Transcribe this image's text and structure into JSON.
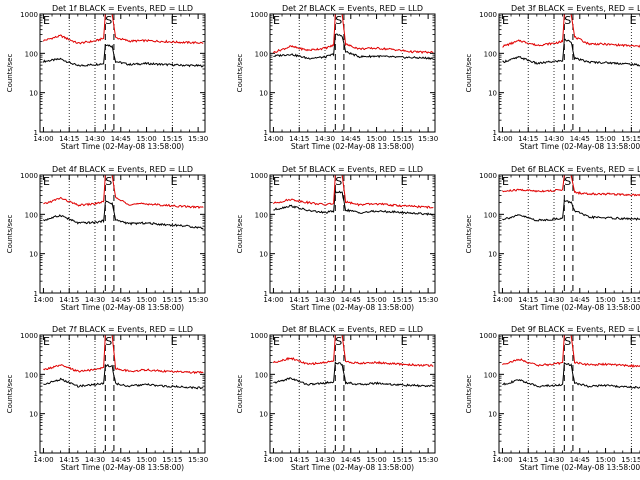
{
  "window": {
    "title": ""
  },
  "style": {
    "events_color": "#000000",
    "lld_color": "#e00000",
    "axis_color": "#000000",
    "background": "#ffffff"
  },
  "markers": {
    "s_label": "S",
    "e_label": "E"
  },
  "chart_data": [
    {
      "type": "line",
      "title": "Det 1f BLACK = Events, RED = LLD",
      "xlabel": "Start Time (02-May-08 13:58:00)",
      "ylabel": "Counts/sec",
      "yscale": "log",
      "ylim": [
        1,
        1000
      ],
      "ytick_labels": [
        "1",
        "10",
        "100",
        "1000"
      ],
      "xlim": [
        "13:58",
        "15:34"
      ],
      "xtick_labels": [
        "14:00",
        "14:15",
        "14:30",
        "14:45",
        "15:00",
        "15:15",
        "15:30"
      ],
      "dotted_lines": [
        "14:15",
        "14:30",
        "15:15"
      ],
      "dashed_lines": [
        "14:36",
        "14:41"
      ],
      "marker_S": "14:38",
      "marker_E": "15:16",
      "series": [
        {
          "x": [
            "14:00",
            "14:10",
            "14:20",
            "14:30",
            "14:35",
            "14:36",
            "14:40",
            "14:42",
            "14:50",
            "15:00",
            "15:10",
            "15:20",
            "15:33"
          ],
          "values": [
            62,
            72,
            48,
            52,
            55,
            170,
            150,
            62,
            52,
            55,
            52,
            50,
            48
          ]
        },
        {
          "x": [
            "14:00",
            "14:10",
            "14:20",
            "14:30",
            "14:35",
            "14:36",
            "14:40",
            "14:42",
            "14:50",
            "15:00",
            "15:10",
            "15:20",
            "15:33"
          ],
          "values": [
            210,
            280,
            180,
            205,
            240,
            1000,
            1000,
            250,
            205,
            210,
            200,
            190,
            185
          ]
        }
      ]
    },
    {
      "type": "line",
      "title": "Det 2f BLACK = Events, RED = LLD",
      "xlabel": "Start Time (02-May-08 13:58:00)",
      "ylabel": "Counts/sec",
      "yscale": "log",
      "ylim": [
        1,
        1000
      ],
      "ytick_labels": [
        "1",
        "10",
        "100",
        "1000"
      ],
      "xlim": [
        "13:58",
        "15:34"
      ],
      "xtick_labels": [
        "14:00",
        "14:15",
        "14:30",
        "14:45",
        "15:00",
        "15:15",
        "15:30"
      ],
      "dotted_lines": [
        "14:15",
        "14:30",
        "15:15"
      ],
      "dashed_lines": [
        "14:36",
        "14:41"
      ],
      "marker_S": "14:38",
      "marker_E": "15:16",
      "series": [
        {
          "x": [
            "14:00",
            "14:10",
            "14:20",
            "14:30",
            "14:35",
            "14:36",
            "14:40",
            "14:42",
            "14:50",
            "15:00",
            "15:10",
            "15:20",
            "15:33"
          ],
          "values": [
            85,
            95,
            75,
            80,
            95,
            300,
            280,
            110,
            82,
            85,
            80,
            78,
            75
          ]
        },
        {
          "x": [
            "14:00",
            "14:10",
            "14:20",
            "14:30",
            "14:35",
            "14:36",
            "14:40",
            "14:42",
            "14:50",
            "15:00",
            "15:10",
            "15:20",
            "15:33"
          ],
          "values": [
            105,
            150,
            120,
            135,
            160,
            1000,
            1000,
            170,
            130,
            135,
            125,
            110,
            105
          ]
        }
      ]
    },
    {
      "type": "line",
      "title": "Det 3f BLACK = Events, RED = LLD",
      "xlabel": "Start Time (02-May-08 13:58:00)",
      "ylabel": "Counts/sec",
      "yscale": "log",
      "ylim": [
        1,
        1000
      ],
      "ytick_labels": [
        "1",
        "10",
        "100",
        "1000"
      ],
      "xlim": [
        "13:58",
        "15:34"
      ],
      "xtick_labels": [
        "14:00",
        "14:15",
        "14:30",
        "14:45",
        "15:00",
        "15:15",
        "15:30"
      ],
      "dotted_lines": [
        "14:15",
        "14:30",
        "15:15"
      ],
      "dashed_lines": [
        "14:36",
        "14:41"
      ],
      "marker_S": "14:38",
      "marker_E": "15:16",
      "series": [
        {
          "x": [
            "14:00",
            "14:10",
            "14:20",
            "14:30",
            "14:35",
            "14:36",
            "14:40",
            "14:42",
            "14:50",
            "15:00",
            "15:10",
            "15:20",
            "15:33"
          ],
          "values": [
            60,
            80,
            55,
            62,
            65,
            220,
            200,
            75,
            60,
            58,
            55,
            50,
            48
          ]
        },
        {
          "x": [
            "14:00",
            "14:10",
            "14:20",
            "14:30",
            "14:35",
            "14:36",
            "14:40",
            "14:42",
            "14:50",
            "15:00",
            "15:10",
            "15:20",
            "15:33"
          ],
          "values": [
            150,
            210,
            160,
            180,
            200,
            1000,
            1000,
            260,
            175,
            170,
            160,
            150,
            140
          ]
        }
      ]
    },
    {
      "type": "line",
      "title": "Det 4f BLACK = Events, RED = LLD",
      "xlabel": "Start Time (02-May-08 13:58:00)",
      "ylabel": "Counts/sec",
      "yscale": "log",
      "ylim": [
        1,
        1000
      ],
      "ytick_labels": [
        "1",
        "10",
        "100",
        "1000"
      ],
      "xlim": [
        "13:58",
        "15:34"
      ],
      "xtick_labels": [
        "14:00",
        "14:15",
        "14:30",
        "14:45",
        "15:00",
        "15:15",
        "15:30"
      ],
      "dotted_lines": [
        "14:15",
        "14:30",
        "15:15"
      ],
      "dashed_lines": [
        "14:36",
        "14:41"
      ],
      "marker_S": "14:38",
      "marker_E": "15:16",
      "series": [
        {
          "x": [
            "14:00",
            "14:10",
            "14:20",
            "14:30",
            "14:35",
            "14:36",
            "14:40",
            "14:42",
            "14:50",
            "15:00",
            "15:10",
            "15:20",
            "15:33"
          ],
          "values": [
            70,
            95,
            60,
            62,
            68,
            210,
            190,
            72,
            58,
            60,
            55,
            52,
            45
          ]
        },
        {
          "x": [
            "14:00",
            "14:10",
            "14:20",
            "14:30",
            "14:35",
            "14:36",
            "14:40",
            "14:42",
            "14:50",
            "15:00",
            "15:10",
            "15:20",
            "15:33"
          ],
          "values": [
            180,
            260,
            170,
            185,
            210,
            1000,
            1000,
            260,
            180,
            185,
            170,
            160,
            150
          ]
        }
      ]
    },
    {
      "type": "line",
      "title": "Det 5f BLACK = Events, RED = LLD",
      "xlabel": "Start Time (02-May-08 13:58:00)",
      "ylabel": "Counts/sec",
      "yscale": "log",
      "ylim": [
        1,
        1000
      ],
      "ytick_labels": [
        "1",
        "10",
        "100",
        "1000"
      ],
      "xlim": [
        "13:58",
        "15:34"
      ],
      "xtick_labels": [
        "14:00",
        "14:15",
        "14:30",
        "14:45",
        "15:00",
        "15:15",
        "15:30"
      ],
      "dotted_lines": [
        "14:15",
        "14:30",
        "15:15"
      ],
      "dashed_lines": [
        "14:36",
        "14:41"
      ],
      "marker_S": "14:38",
      "marker_E": "15:16",
      "series": [
        {
          "x": [
            "14:00",
            "14:10",
            "14:20",
            "14:30",
            "14:35",
            "14:36",
            "14:40",
            "14:42",
            "14:50",
            "15:00",
            "15:10",
            "15:20",
            "15:33"
          ],
          "values": [
            130,
            165,
            125,
            110,
            120,
            380,
            350,
            130,
            110,
            120,
            115,
            108,
            100
          ]
        },
        {
          "x": [
            "14:00",
            "14:10",
            "14:20",
            "14:30",
            "14:35",
            "14:36",
            "14:40",
            "14:42",
            "14:50",
            "15:00",
            "15:10",
            "15:20",
            "15:33"
          ],
          "values": [
            190,
            240,
            200,
            175,
            190,
            1000,
            1000,
            210,
            175,
            185,
            170,
            160,
            150
          ]
        }
      ]
    },
    {
      "type": "line",
      "title": "Det 6f BLACK = Events, RED = LLD",
      "xlabel": "Start Time (02-May-08 13:58:00)",
      "ylabel": "Counts/sec",
      "yscale": "log",
      "ylim": [
        1,
        1000
      ],
      "ytick_labels": [
        "1",
        "10",
        "100",
        "1000"
      ],
      "xlim": [
        "13:58",
        "15:34"
      ],
      "xtick_labels": [
        "14:00",
        "14:15",
        "14:30",
        "14:45",
        "15:00",
        "15:15",
        "15:30"
      ],
      "dotted_lines": [
        "14:15",
        "14:30",
        "15:15"
      ],
      "dashed_lines": [
        "14:36",
        "14:41"
      ],
      "marker_S": "14:38",
      "marker_E": "15:16",
      "series": [
        {
          "x": [
            "14:00",
            "14:10",
            "14:20",
            "14:30",
            "14:35",
            "14:36",
            "14:40",
            "14:42",
            "14:50",
            "15:00",
            "15:10",
            "15:20",
            "15:33"
          ],
          "values": [
            75,
            95,
            70,
            75,
            80,
            220,
            200,
            125,
            85,
            82,
            78,
            75,
            72
          ]
        },
        {
          "x": [
            "14:00",
            "14:10",
            "14:20",
            "14:30",
            "14:35",
            "14:36",
            "14:40",
            "14:42",
            "14:50",
            "15:00",
            "15:10",
            "15:20",
            "15:33"
          ],
          "values": [
            380,
            420,
            390,
            400,
            430,
            1000,
            1000,
            360,
            330,
            330,
            320,
            310,
            305
          ]
        }
      ]
    },
    {
      "type": "line",
      "title": "Det 7f BLACK = Events, RED = LLD",
      "xlabel": "Start Time (02-May-08 13:58:00)",
      "ylabel": "Counts/sec",
      "yscale": "log",
      "ylim": [
        1,
        1000
      ],
      "ytick_labels": [
        "1",
        "10",
        "100",
        "1000"
      ],
      "xlim": [
        "13:58",
        "15:34"
      ],
      "xtick_labels": [
        "14:00",
        "14:15",
        "14:30",
        "14:45",
        "15:00",
        "15:15",
        "15:30"
      ],
      "dotted_lines": [
        "14:15",
        "14:30",
        "15:15"
      ],
      "dashed_lines": [
        "14:36",
        "14:41"
      ],
      "marker_S": "14:38",
      "marker_E": "15:16",
      "series": [
        {
          "x": [
            "14:00",
            "14:10",
            "14:20",
            "14:30",
            "14:35",
            "14:36",
            "14:40",
            "14:42",
            "14:50",
            "15:00",
            "15:10",
            "15:20",
            "15:33"
          ],
          "values": [
            55,
            75,
            50,
            55,
            60,
            170,
            160,
            58,
            50,
            55,
            50,
            48,
            45
          ]
        },
        {
          "x": [
            "14:00",
            "14:10",
            "14:20",
            "14:30",
            "14:35",
            "14:36",
            "14:40",
            "14:42",
            "14:50",
            "15:00",
            "15:10",
            "15:20",
            "15:33"
          ],
          "values": [
            130,
            170,
            120,
            130,
            150,
            1000,
            1000,
            140,
            120,
            130,
            120,
            115,
            110
          ]
        }
      ]
    },
    {
      "type": "line",
      "title": "Det 8f BLACK = Events, RED = LLD",
      "xlabel": "Start Time (02-May-08 13:58:00)",
      "ylabel": "Counts/sec",
      "yscale": "log",
      "ylim": [
        1,
        1000
      ],
      "ytick_labels": [
        "1",
        "10",
        "100",
        "1000"
      ],
      "xlim": [
        "13:58",
        "15:34"
      ],
      "xtick_labels": [
        "14:00",
        "14:15",
        "14:30",
        "14:45",
        "15:00",
        "15:15",
        "15:30"
      ],
      "dotted_lines": [
        "14:15",
        "14:30",
        "15:15"
      ],
      "dashed_lines": [
        "14:36",
        "14:41"
      ],
      "marker_S": "14:38",
      "marker_E": "15:16",
      "series": [
        {
          "x": [
            "14:00",
            "14:10",
            "14:20",
            "14:30",
            "14:35",
            "14:36",
            "14:40",
            "14:42",
            "14:50",
            "15:00",
            "15:10",
            "15:20",
            "15:33"
          ],
          "values": [
            60,
            80,
            55,
            60,
            65,
            200,
            180,
            62,
            55,
            60,
            55,
            52,
            50
          ]
        },
        {
          "x": [
            "14:00",
            "14:10",
            "14:20",
            "14:30",
            "14:35",
            "14:36",
            "14:40",
            "14:42",
            "14:50",
            "15:00",
            "15:10",
            "15:20",
            "15:33"
          ],
          "values": [
            200,
            260,
            180,
            200,
            220,
            1000,
            1000,
            210,
            190,
            200,
            185,
            175,
            165
          ]
        }
      ]
    },
    {
      "type": "line",
      "title": "Det 9f BLACK = Events, RED = LLD",
      "xlabel": "Start Time (02-May-08 13:58:00)",
      "ylabel": "Counts/sec",
      "yscale": "log",
      "ylim": [
        1,
        1000
      ],
      "ytick_labels": [
        "1",
        "10",
        "100",
        "1000"
      ],
      "xlim": [
        "13:58",
        "15:34"
      ],
      "xtick_labels": [
        "14:00",
        "14:15",
        "14:30",
        "14:45",
        "15:00",
        "15:15",
        "15:30"
      ],
      "dotted_lines": [
        "14:15",
        "14:30",
        "15:15"
      ],
      "dashed_lines": [
        "14:36",
        "14:41"
      ],
      "marker_S": "14:38",
      "marker_E": "15:16",
      "series": [
        {
          "x": [
            "14:00",
            "14:10",
            "14:20",
            "14:30",
            "14:35",
            "14:36",
            "14:40",
            "14:42",
            "14:50",
            "15:00",
            "15:10",
            "15:20",
            "15:33"
          ],
          "values": [
            55,
            72,
            50,
            52,
            55,
            190,
            170,
            60,
            50,
            52,
            48,
            46,
            45
          ]
        },
        {
          "x": [
            "14:00",
            "14:10",
            "14:20",
            "14:30",
            "14:35",
            "14:36",
            "14:40",
            "14:42",
            "14:50",
            "15:00",
            "15:10",
            "15:20",
            "15:33"
          ],
          "values": [
            180,
            240,
            170,
            180,
            200,
            1000,
            1000,
            200,
            175,
            180,
            170,
            160,
            155
          ]
        }
      ]
    }
  ]
}
